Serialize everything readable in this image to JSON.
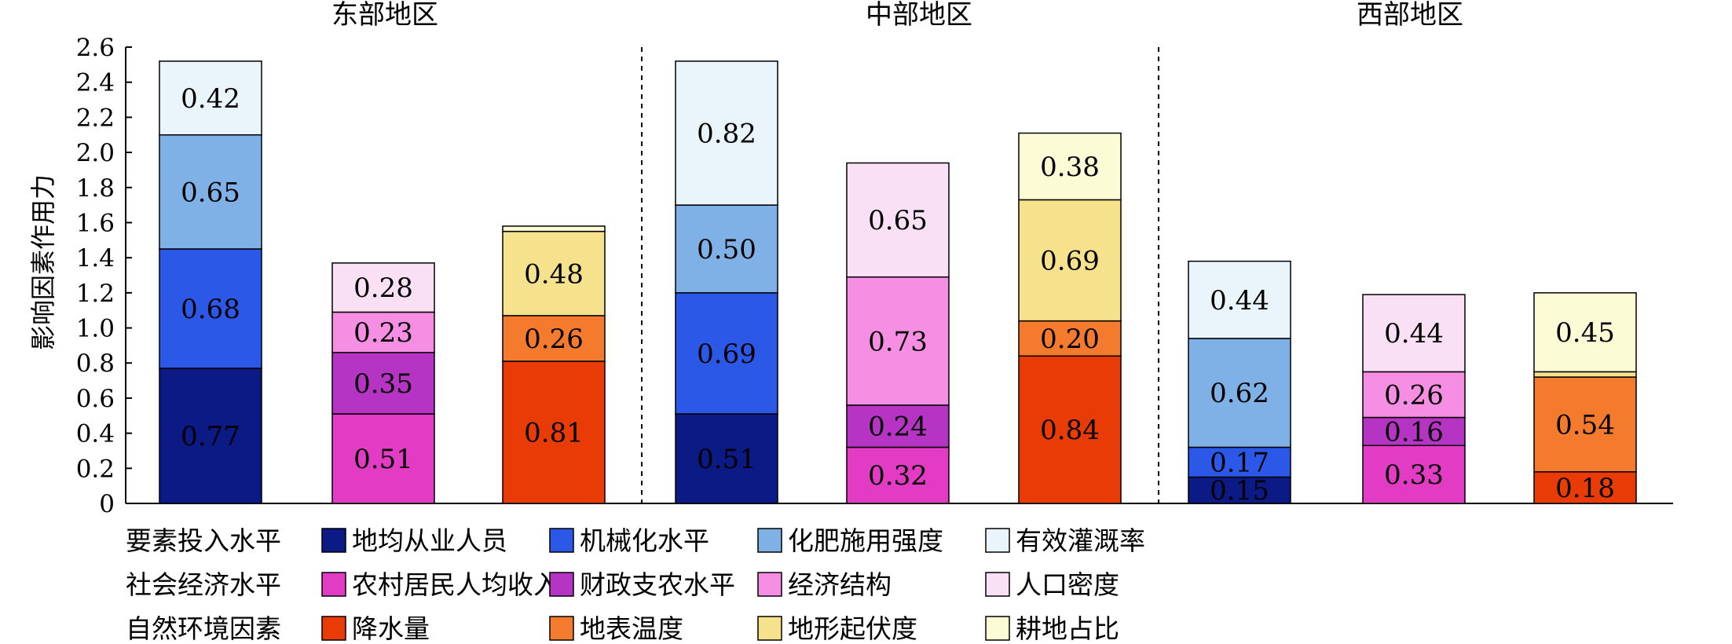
{
  "chart_data": {
    "type": "bar",
    "stacked": true,
    "ylabel": "影响因素作用力",
    "ylim": [
      0,
      2.6
    ],
    "yticks": [
      "0",
      "0.2",
      "0.4",
      "0.6",
      "0.8",
      "1.0",
      "1.2",
      "1.4",
      "1.6",
      "1.8",
      "2.0",
      "2.2",
      "2.4",
      "2.6"
    ],
    "grid": false,
    "regions": [
      {
        "title": "东部地区",
        "bars": [
          {
            "group": "要素投入水平",
            "segments": [
              {
                "factor": "地均从业人员",
                "value": 0.77,
                "label": "0.77",
                "color": "#0b1a84"
              },
              {
                "factor": "机械化水平",
                "value": 0.68,
                "label": "0.68",
                "color": "#2b58e6"
              },
              {
                "factor": "化肥施用强度",
                "value": 0.65,
                "label": "0.65",
                "color": "#7fb1e6"
              },
              {
                "factor": "有效灌溉率",
                "value": 0.42,
                "label": "0.42",
                "color": "#eaf5fb"
              }
            ]
          },
          {
            "group": "社会经济水平",
            "segments": [
              {
                "factor": "农村居民人均收入",
                "value": 0.51,
                "label": "0.51",
                "color": "#e23bc4"
              },
              {
                "factor": "财政支农水平",
                "value": 0.35,
                "label": "0.35",
                "color": "#b534c4"
              },
              {
                "factor": "经济结构",
                "value": 0.23,
                "label": "0.23",
                "color": "#f68ee4"
              },
              {
                "factor": "人口密度",
                "value": 0.28,
                "label": "0.28",
                "color": "#f9e0f4"
              }
            ]
          },
          {
            "group": "自然环境因素",
            "segments": [
              {
                "factor": "降水量",
                "value": 0.81,
                "label": "0.81",
                "color": "#e83b06"
              },
              {
                "factor": "地表温度",
                "value": 0.26,
                "label": "0.26",
                "color": "#f47a2e"
              },
              {
                "factor": "地形起伏度",
                "value": 0.48,
                "label": "0.48",
                "color": "#f6e28c"
              },
              {
                "factor": "耕地占比",
                "value": 0.03,
                "label": "",
                "color": "#fbfbd6"
              }
            ]
          }
        ]
      },
      {
        "title": "中部地区",
        "bars": [
          {
            "group": "要素投入水平",
            "segments": [
              {
                "factor": "地均从业人员",
                "value": 0.51,
                "label": "0.51",
                "color": "#0b1a84"
              },
              {
                "factor": "机械化水平",
                "value": 0.69,
                "label": "0.69",
                "color": "#2b58e6"
              },
              {
                "factor": "化肥施用强度",
                "value": 0.5,
                "label": "0.50",
                "color": "#7fb1e6"
              },
              {
                "factor": "有效灌溉率",
                "value": 0.82,
                "label": "0.82",
                "color": "#eaf5fb"
              }
            ]
          },
          {
            "group": "社会经济水平",
            "segments": [
              {
                "factor": "农村居民人均收入",
                "value": 0.32,
                "label": "0.32",
                "color": "#e23bc4"
              },
              {
                "factor": "财政支农水平",
                "value": 0.24,
                "label": "0.24",
                "color": "#b534c4"
              },
              {
                "factor": "经济结构",
                "value": 0.73,
                "label": "0.73",
                "color": "#f68ee4"
              },
              {
                "factor": "人口密度",
                "value": 0.65,
                "label": "0.65",
                "color": "#f9e0f4"
              }
            ]
          },
          {
            "group": "自然环境因素",
            "segments": [
              {
                "factor": "降水量",
                "value": 0.84,
                "label": "0.84",
                "color": "#e83b06"
              },
              {
                "factor": "地表温度",
                "value": 0.2,
                "label": "0.20",
                "color": "#f47a2e"
              },
              {
                "factor": "地形起伏度",
                "value": 0.69,
                "label": "0.69",
                "color": "#f6e28c"
              },
              {
                "factor": "耕地占比",
                "value": 0.38,
                "label": "0.38",
                "color": "#fbfbd6"
              }
            ]
          }
        ]
      },
      {
        "title": "西部地区",
        "bars": [
          {
            "group": "要素投入水平",
            "segments": [
              {
                "factor": "地均从业人员",
                "value": 0.15,
                "label": "0.15",
                "color": "#0b1a84"
              },
              {
                "factor": "机械化水平",
                "value": 0.17,
                "label": "0.17",
                "color": "#2b58e6"
              },
              {
                "factor": "化肥施用强度",
                "value": 0.62,
                "label": "0.62",
                "color": "#7fb1e6"
              },
              {
                "factor": "有效灌溉率",
                "value": 0.44,
                "label": "0.44",
                "color": "#eaf5fb"
              }
            ]
          },
          {
            "group": "社会经济水平",
            "segments": [
              {
                "factor": "农村居民人均收入",
                "value": 0.33,
                "label": "0.33",
                "color": "#e23bc4"
              },
              {
                "factor": "财政支农水平",
                "value": 0.16,
                "label": "0.16",
                "color": "#b534c4"
              },
              {
                "factor": "经济结构",
                "value": 0.26,
                "label": "0.26",
                "color": "#f68ee4"
              },
              {
                "factor": "人口密度",
                "value": 0.44,
                "label": "0.44",
                "color": "#f9e0f4"
              }
            ]
          },
          {
            "group": "自然环境因素",
            "segments": [
              {
                "factor": "降水量",
                "value": 0.18,
                "label": "0.18",
                "color": "#e83b06"
              },
              {
                "factor": "地表温度",
                "value": 0.54,
                "label": "0.54",
                "color": "#f47a2e"
              },
              {
                "factor": "地形起伏度",
                "value": 0.03,
                "label": "",
                "color": "#f6e28c"
              },
              {
                "factor": "耕地占比",
                "value": 0.45,
                "label": "0.45",
                "color": "#fbfbd6"
              }
            ]
          }
        ]
      }
    ],
    "legend": {
      "placement": "bottom",
      "rows": [
        {
          "group": "要素投入水平",
          "items": [
            {
              "name": "地均从业人员",
              "color": "#0b1a84"
            },
            {
              "name": "机械化水平",
              "color": "#2b58e6"
            },
            {
              "name": "化肥施用强度",
              "color": "#7fb1e6"
            },
            {
              "name": "有效灌溉率",
              "color": "#eaf5fb"
            }
          ]
        },
        {
          "group": "社会经济水平",
          "items": [
            {
              "name": "农村居民人均收入",
              "color": "#e23bc4"
            },
            {
              "name": "财政支农水平",
              "color": "#b534c4"
            },
            {
              "name": "经济结构",
              "color": "#f68ee4"
            },
            {
              "name": "人口密度",
              "color": "#f9e0f4"
            }
          ]
        },
        {
          "group": "自然环境因素",
          "items": [
            {
              "name": "降水量",
              "color": "#e83b06"
            },
            {
              "name": "地表温度",
              "color": "#f47a2e"
            },
            {
              "name": "地形起伏度",
              "color": "#f6e28c"
            },
            {
              "name": "耕地占比",
              "color": "#fbfbd6"
            }
          ]
        }
      ]
    }
  }
}
